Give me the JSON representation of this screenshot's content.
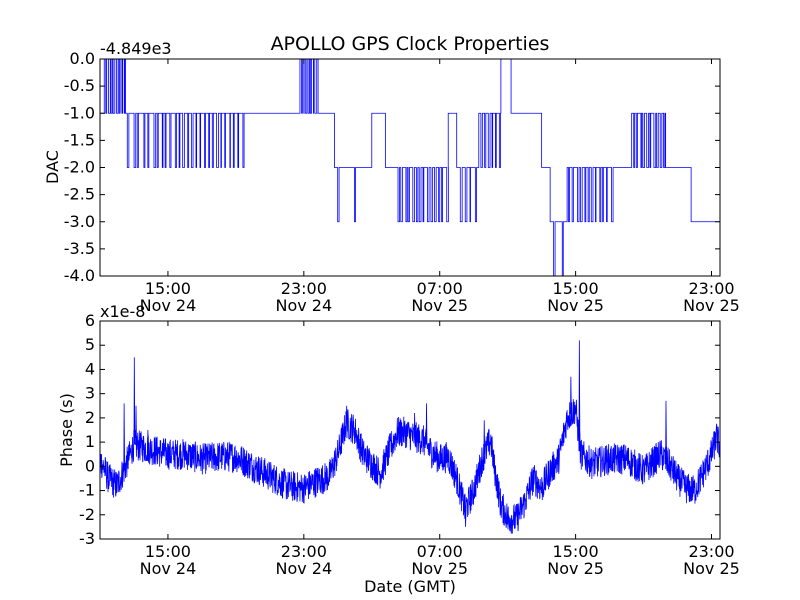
{
  "chart_data": [
    {
      "type": "line",
      "title": "APOLLO GPS Clock Properties",
      "xlabel": "",
      "ylabel": "DAC",
      "offset_label": "-4.849e3",
      "ylim": [
        -4.0,
        0.0
      ],
      "y_ticks": [
        0.0,
        -0.5,
        -1.0,
        -1.5,
        -2.0,
        -2.5,
        -3.0,
        -3.5,
        -4.0
      ],
      "y_tick_labels": [
        "0.0",
        "-0.5",
        "-1.0",
        "-1.5",
        "-2.0",
        "-2.5",
        "-3.0",
        "-3.5",
        "-4.0"
      ],
      "x_range_hours": [
        11.0,
        47.5
      ],
      "x_ticks_hours": [
        15,
        23,
        31,
        39,
        47
      ],
      "x_tick_labels": [
        [
          "15:00",
          "Nov 24"
        ],
        [
          "23:00",
          "Nov 24"
        ],
        [
          "07:00",
          "Nov 25"
        ],
        [
          "15:00",
          "Nov 25"
        ],
        [
          "23:00",
          "Nov 25"
        ]
      ],
      "series_color": "#0000ff",
      "grid": false,
      "levels": [
        {
          "t0": 11.0,
          "t1": 11.25,
          "v": -1
        },
        {
          "t0": 11.25,
          "t1": 12.5,
          "v": 0,
          "toggle_to": -1,
          "toggles": 8
        },
        {
          "t0": 12.5,
          "t1": 14.0,
          "v": -1,
          "toggle_to": -2,
          "toggles": 5
        },
        {
          "t0": 14.0,
          "t1": 19.5,
          "v": -1,
          "toggle_to": -2,
          "toggles": 22
        },
        {
          "t0": 19.5,
          "t1": 21.5,
          "v": -1
        },
        {
          "t0": 21.5,
          "t1": 22.7,
          "v": -1
        },
        {
          "t0": 22.7,
          "t1": 23.8,
          "v": -1,
          "toggle_to": 0,
          "toggles": 8
        },
        {
          "t0": 23.8,
          "t1": 24.8,
          "v": -1
        },
        {
          "t0": 24.8,
          "t1": 26.3,
          "v": -2,
          "toggle_to": -3,
          "toggles": 2
        },
        {
          "t0": 26.3,
          "t1": 27.0,
          "v": -2
        },
        {
          "t0": 27.0,
          "t1": 27.8,
          "v": -1
        },
        {
          "t0": 27.8,
          "t1": 28.4,
          "v": -2
        },
        {
          "t0": 28.4,
          "t1": 31.5,
          "v": -2,
          "toggle_to": -3,
          "toggles": 14
        },
        {
          "t0": 31.5,
          "t1": 32.0,
          "v": -1
        },
        {
          "t0": 32.0,
          "t1": 33.3,
          "v": -2,
          "toggle_to": -3,
          "toggles": 4
        },
        {
          "t0": 33.3,
          "t1": 34.6,
          "v": -1,
          "toggle_to": -2,
          "toggles": 6
        },
        {
          "t0": 34.6,
          "t1": 35.2,
          "v": 0
        },
        {
          "t0": 35.2,
          "t1": 37.0,
          "v": -1
        },
        {
          "t0": 37.0,
          "t1": 37.5,
          "v": -2
        },
        {
          "t0": 37.5,
          "t1": 38.5,
          "v": -3,
          "toggle_to": -4,
          "toggles": 2
        },
        {
          "t0": 38.5,
          "t1": 41.2,
          "v": -2,
          "toggle_to": -3,
          "toggles": 12
        },
        {
          "t0": 41.2,
          "t1": 42.3,
          "v": -2
        },
        {
          "t0": 42.3,
          "t1": 44.3,
          "v": -1,
          "toggle_to": -2,
          "toggles": 10
        },
        {
          "t0": 44.3,
          "t1": 45.8,
          "v": -2
        },
        {
          "t0": 45.8,
          "t1": 47.5,
          "v": -3
        }
      ]
    },
    {
      "type": "line",
      "title": "",
      "xlabel": "Date (GMT)",
      "ylabel": "Phase (s)",
      "offset_label": "x1e-8",
      "ylim": [
        -3,
        6
      ],
      "y_ticks": [
        6,
        5,
        4,
        3,
        2,
        1,
        0,
        -1,
        -2,
        -3
      ],
      "y_tick_labels": [
        "6",
        "5",
        "4",
        "3",
        "2",
        "1",
        "0",
        "-1",
        "-2",
        "-3"
      ],
      "x_range_hours": [
        11.0,
        47.5
      ],
      "x_ticks_hours": [
        15,
        23,
        31,
        39,
        47
      ],
      "x_tick_labels": [
        [
          "15:00",
          "Nov 24"
        ],
        [
          "23:00",
          "Nov 24"
        ],
        [
          "07:00",
          "Nov 25"
        ],
        [
          "15:00",
          "Nov 25"
        ],
        [
          "23:00",
          "Nov 25"
        ]
      ],
      "series_color": "#0000ff",
      "grid": false,
      "trend": [
        [
          11.0,
          0.3
        ],
        [
          11.5,
          -0.5
        ],
        [
          12.0,
          -0.8
        ],
        [
          12.5,
          0.0
        ],
        [
          13.0,
          0.9
        ],
        [
          13.5,
          0.8
        ],
        [
          14.0,
          0.7
        ],
        [
          15.0,
          0.5
        ],
        [
          16.0,
          0.5
        ],
        [
          17.0,
          0.3
        ],
        [
          18.0,
          0.4
        ],
        [
          19.0,
          0.4
        ],
        [
          20.0,
          0.0
        ],
        [
          21.0,
          -0.4
        ],
        [
          22.0,
          -0.8
        ],
        [
          23.0,
          -0.9
        ],
        [
          23.8,
          -0.6
        ],
        [
          24.5,
          -0.4
        ],
        [
          25.0,
          0.5
        ],
        [
          25.5,
          1.8
        ],
        [
          26.0,
          1.5
        ],
        [
          26.5,
          0.5
        ],
        [
          27.0,
          0.1
        ],
        [
          27.5,
          -0.3
        ],
        [
          28.0,
          0.6
        ],
        [
          28.5,
          1.4
        ],
        [
          29.0,
          1.4
        ],
        [
          29.5,
          1.2
        ],
        [
          30.0,
          1.1
        ],
        [
          30.5,
          0.6
        ],
        [
          31.0,
          0.3
        ],
        [
          31.5,
          0.4
        ],
        [
          32.0,
          -0.5
        ],
        [
          32.5,
          -1.8
        ],
        [
          33.0,
          -1.0
        ],
        [
          33.5,
          0.3
        ],
        [
          34.0,
          1.1
        ],
        [
          34.2,
          0.0
        ],
        [
          34.6,
          -1.6
        ],
        [
          35.0,
          -2.1
        ],
        [
          35.5,
          -2.2
        ],
        [
          36.0,
          -1.5
        ],
        [
          36.5,
          -0.5
        ],
        [
          37.0,
          -0.9
        ],
        [
          37.5,
          -0.2
        ],
        [
          38.0,
          0.3
        ],
        [
          38.5,
          2.0
        ],
        [
          39.0,
          2.4
        ],
        [
          39.3,
          0.5
        ],
        [
          40.0,
          0.1
        ],
        [
          41.0,
          0.3
        ],
        [
          42.0,
          0.3
        ],
        [
          43.0,
          -0.2
        ],
        [
          44.0,
          0.5
        ],
        [
          44.5,
          0.1
        ],
        [
          45.0,
          -0.5
        ],
        [
          45.5,
          -0.9
        ],
        [
          46.0,
          -1.0
        ],
        [
          46.5,
          -0.3
        ],
        [
          47.0,
          0.5
        ],
        [
          47.3,
          1.2
        ],
        [
          47.5,
          0.8
        ]
      ],
      "spikes": [
        [
          12.4,
          2.6
        ],
        [
          13.0,
          4.5
        ],
        [
          13.1,
          2.5
        ],
        [
          13.8,
          1.5
        ],
        [
          25.5,
          2.5
        ],
        [
          29.5,
          2.2
        ],
        [
          30.2,
          2.6
        ],
        [
          32.5,
          -2.5
        ],
        [
          33.6,
          1.9
        ],
        [
          35.0,
          -2.6
        ],
        [
          38.7,
          3.7
        ],
        [
          39.2,
          5.2
        ],
        [
          44.3,
          2.7
        ],
        [
          47.2,
          1.4
        ]
      ]
    }
  ]
}
